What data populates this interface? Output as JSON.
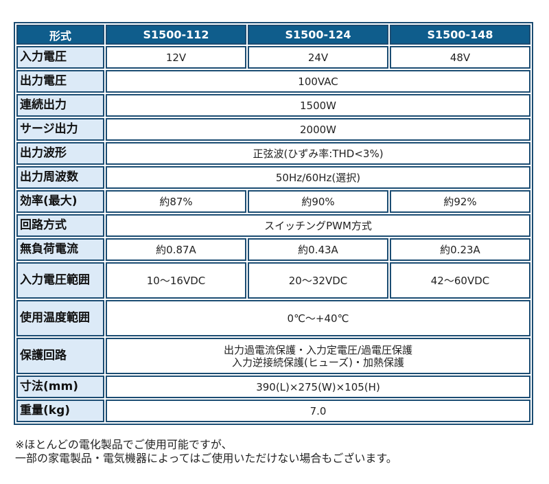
{
  "header": [
    "形式",
    "S1500-112",
    "S1500-124",
    "S1500-148"
  ],
  "rows": [
    {
      "label": "入力電圧",
      "values": [
        "12V",
        "24V",
        "48V"
      ]
    },
    {
      "label": "出力電圧",
      "values": [
        "100VAC"
      ]
    },
    {
      "label": "連続出力",
      "values": [
        "1500W"
      ]
    },
    {
      "label": "サージ出力",
      "values": [
        "2000W"
      ]
    },
    {
      "label": "出力波形",
      "values": [
        "正弦波(ひずみ率:THD<3%)"
      ]
    },
    {
      "label": "出力周波数",
      "values": [
        "50Hz/60Hz(選択)"
      ]
    },
    {
      "label": "効率(最大)",
      "values": [
        "約87%",
        "約90%",
        "約92%"
      ]
    },
    {
      "label": "回路方式",
      "values": [
        "スイッチングPWM方式"
      ]
    },
    {
      "label": "無負荷電流",
      "values": [
        "約0.87A",
        "約0.43A",
        "約0.23A"
      ]
    },
    {
      "label": "入力電圧範囲",
      "values": [
        "10〜16VDC",
        "20〜32VDC",
        "42〜60VDC"
      ],
      "tall": true
    },
    {
      "label": "使用温度範囲",
      "values": [
        "0℃〜+40℃"
      ],
      "tall": true
    },
    {
      "label": "保護回路",
      "values": [
        "出力過電流保護・入力定電圧/過電圧保護\n入力逆接続保護(ヒューズ)・加熱保護"
      ],
      "tall": true
    },
    {
      "label": "寸法(mm)",
      "values": [
        "390(L)×275(W)×105(H)"
      ]
    },
    {
      "label": "重量(kg)",
      "values": [
        "7.0"
      ]
    }
  ],
  "note": [
    "※ほとんどの電化製品でご使用可能ですが、",
    "一部の家電製品・電気機器によってはご使用いただけない場合もございます。"
  ]
}
